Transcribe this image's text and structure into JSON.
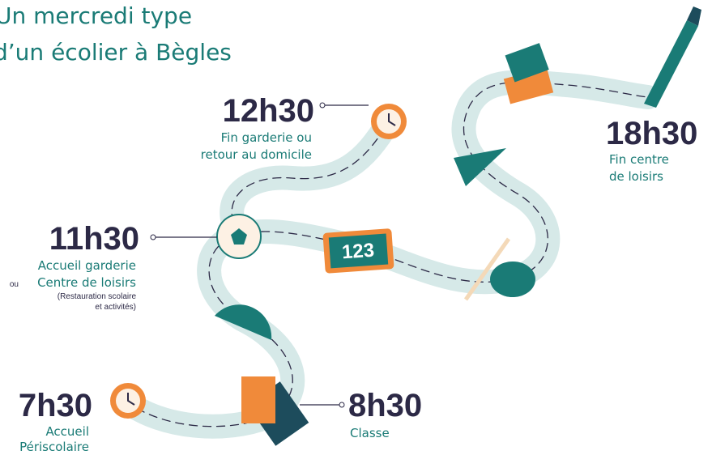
{
  "title": [
    "Un mercredi type",
    "d’un écolier à Bègles"
  ],
  "events": [
    {
      "time": "12h30",
      "lines": [
        "Fin garderie ou",
        "retour au domicile"
      ]
    },
    {
      "time": "11h30",
      "lines": [
        "Accueil garderie",
        "Centre de loisirs"
      ],
      "prefix": "ou",
      "note": [
        "(Restauration scolaire",
        "et activités)"
      ]
    },
    {
      "time": "7h30",
      "lines": [
        "Accueil",
        "Périscolaire"
      ]
    },
    {
      "time": "8h30",
      "lines": [
        "Classe"
      ]
    },
    {
      "time": "18h30",
      "lines": [
        "Fin centre",
        "de loisirs"
      ]
    }
  ],
  "board_label": "123"
}
